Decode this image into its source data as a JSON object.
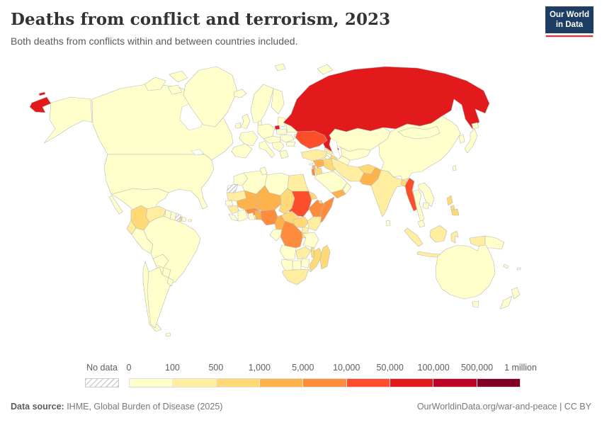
{
  "header": {
    "title": "Deaths from conflict and terrorism, 2023",
    "subtitle": "Both deaths from conflicts within and between countries included.",
    "logo": {
      "line1": "Our World",
      "line2": "in Data",
      "bg_color": "#1d3d63",
      "accent_color": "#e0363f"
    }
  },
  "legend": {
    "no_data_label": "No data",
    "tick_labels": [
      "0",
      "100",
      "500",
      "1,000",
      "5,000",
      "10,000",
      "50,000",
      "100,000",
      "500,000",
      "1 million"
    ]
  },
  "footer": {
    "source_label": "Data source:",
    "source_text": " IHME, Global Burden of Disease (2025)",
    "right_text": "OurWorldinData.org/war-and-peace | CC BY"
  },
  "chart_data": {
    "type": "choropleth",
    "title": "Deaths from conflict and terrorism",
    "year": "2023",
    "unit": "deaths",
    "legend_position": "bottom",
    "bins": [
      {
        "range": "0-100",
        "color": "#ffffcc"
      },
      {
        "range": "100-500",
        "color": "#ffeda0"
      },
      {
        "range": "500-1,000",
        "color": "#fed976"
      },
      {
        "range": "1,000-5,000",
        "color": "#feb24c"
      },
      {
        "range": "5,000-10,000",
        "color": "#fd8d3c"
      },
      {
        "range": "10,000-50,000",
        "color": "#fc4e2a"
      },
      {
        "range": "50,000-100,000",
        "color": "#e31a1c"
      },
      {
        "range": "100,000-500,000",
        "color": "#bd0026"
      },
      {
        "range": "500,000-1 million",
        "color": "#800026"
      }
    ],
    "default_bin": "0-100",
    "no_data_regions": [
      "french-guiana",
      "western-sahara"
    ],
    "region_bins": {
      "russia": "50,000-100,000",
      "ukraine": "10,000-50,000",
      "myanmar": "10,000-50,000",
      "sudan": "10,000-50,000",
      "burkina-faso": "5,000-10,000",
      "nigeria": "5,000-10,000",
      "somalia": "5,000-10,000",
      "ethiopia": "5,000-10,000",
      "drc": "5,000-10,000",
      "israel": "5,000-10,000",
      "mali": "1,000-5,000",
      "niger": "1,000-5,000",
      "cameroon": "1,000-5,000",
      "benin-togo": "1,000-5,000",
      "syria": "1,000-5,000",
      "lebanon": "1,000-5,000",
      "yemen": "1,000-5,000",
      "pakistan": "1,000-5,000",
      "colombia": "500-1,000",
      "haiti": "500-1,000",
      "honduras": "500-1,000",
      "chad": "500-1,000",
      "car": "500-1,000",
      "south-sudan": "500-1,000",
      "eritrea": "500-1,000",
      "iraq": "500-1,000",
      "jordan": "500-1,000",
      "afghanistan": "500-1,000",
      "bangladesh": "500-1,000",
      "philippines": "500-1,000",
      "madagascar": "500-1,000",
      "mozambique": "500-1,000",
      "malawi": "500-1,000",
      "azerbaijan": "500-1,000",
      "rwanda-burundi": "500-1,000",
      "djibouti": "500-1,000",
      "turkey": "100-500",
      "iran": "100-500",
      "egypt": "100-500",
      "india": "100-500",
      "kenya": "100-500",
      "uganda": "100-500",
      "south-africa": "100-500",
      "indonesia": "100-500",
      "ecuador": "100-500",
      "venezuela": "100-500",
      "guinea": "100-500",
      "mauritania": "100-500",
      "zambia": "100-500",
      "nepal": "100-500",
      "georgia": "100-500"
    }
  }
}
